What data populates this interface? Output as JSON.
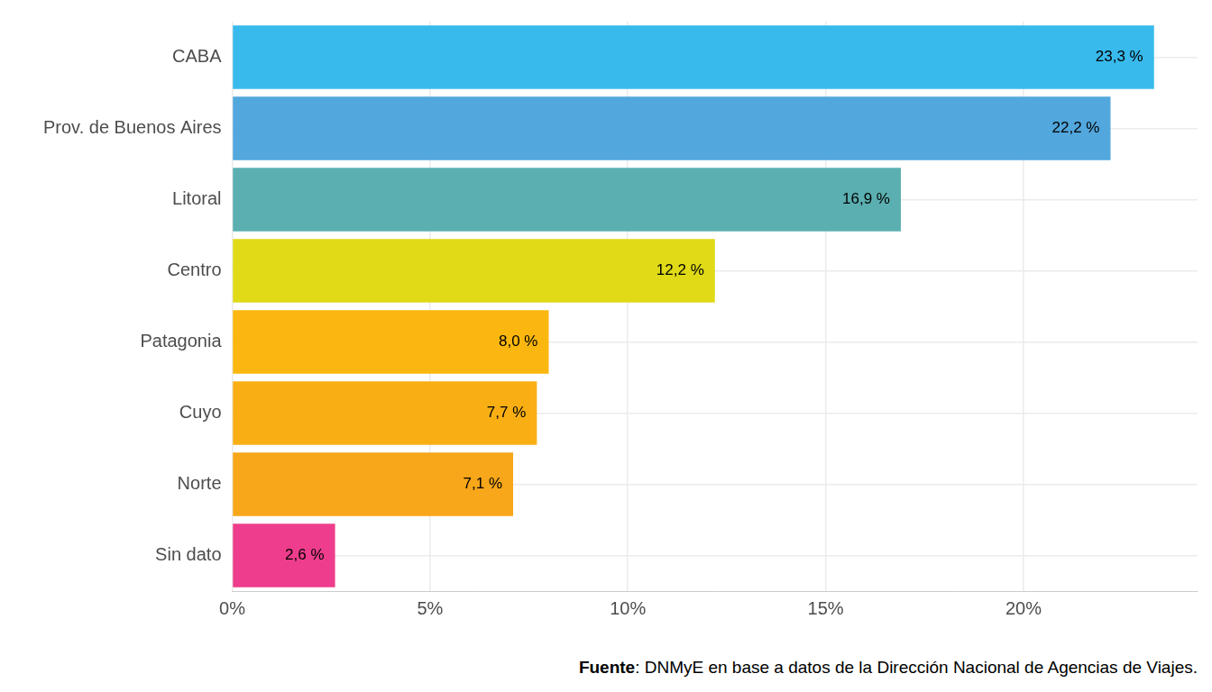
{
  "chart_data": {
    "type": "bar",
    "orientation": "horizontal",
    "categories": [
      "CABA",
      "Prov. de Buenos Aires",
      "Litoral",
      "Centro",
      "Patagonia",
      "Cuyo",
      "Norte",
      "Sin dato"
    ],
    "values": [
      23.3,
      22.2,
      16.9,
      12.2,
      8.0,
      7.7,
      7.1,
      2.6
    ],
    "value_labels": [
      "23,3 %",
      "22,2 %",
      "16,9 %",
      "12,2 %",
      "8,0 %",
      "7,7 %",
      "7,1 %",
      "2,6 %"
    ],
    "colors": [
      "#38baec",
      "#52a7dd",
      "#5bafb1",
      "#e0da17",
      "#fbb70f",
      "#f9af14",
      "#f8a61a",
      "#ee3d8c"
    ],
    "xlim": [
      0,
      24.4
    ],
    "xticks": [
      {
        "value": 0,
        "label": "0%"
      },
      {
        "value": 5,
        "label": "5%"
      },
      {
        "value": 10,
        "label": "10%"
      },
      {
        "value": 15,
        "label": "15%"
      },
      {
        "value": 20,
        "label": "20%"
      }
    ],
    "grid": true,
    "data_labels": true,
    "caption": "Fuente: DNMyE en base a datos de la Dirección Nacional de Agencias de Viajes."
  }
}
